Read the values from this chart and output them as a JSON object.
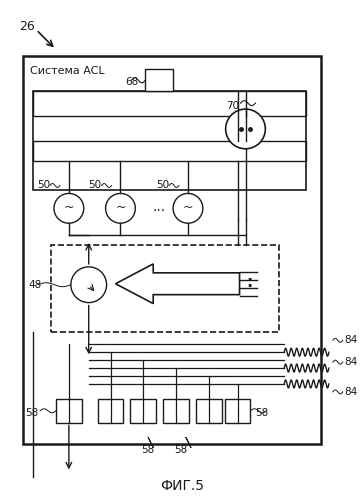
{
  "label_26": "26",
  "label_68": "68",
  "label_70": "70",
  "label_50": "50",
  "label_48": "48",
  "label_58": "58",
  "label_84": "84",
  "system_label": "Система ACL",
  "fig_label": "ФИГ.5",
  "bg_color": "#ffffff",
  "line_color": "#1a1a1a"
}
